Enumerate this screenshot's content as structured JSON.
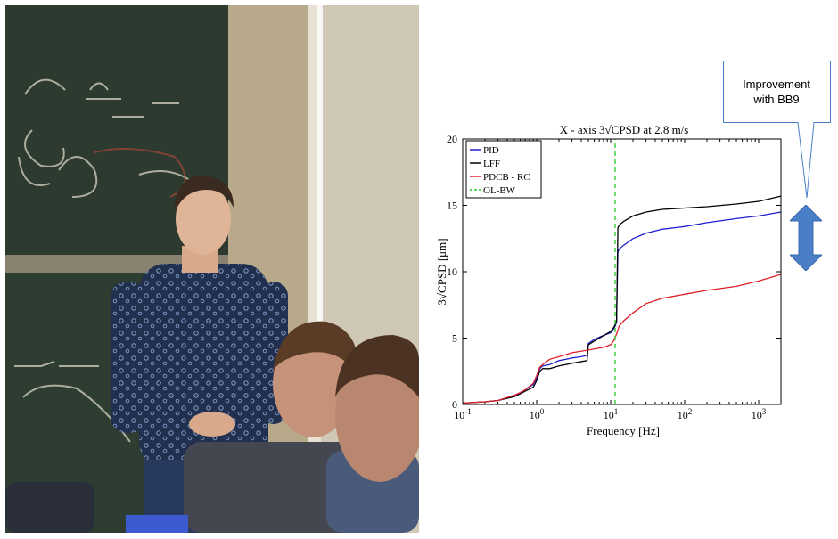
{
  "callout": {
    "line1": "Improvement",
    "line2": "with BB9"
  },
  "colors": {
    "pid": "#1f1fcf",
    "lff": "#000000",
    "pdcb": "#e0202a",
    "olbw": "#22cc22",
    "arrow": "#4a7fc7"
  },
  "photo": {
    "icon": "lecture-photo"
  },
  "chart_data": {
    "type": "line",
    "title": "X - axis 3√CPSD at 2.8 m/s",
    "xlabel": "Frequency [Hz]",
    "ylabel": "3√CPSD [μm]",
    "xscale": "log",
    "xlim": [
      0.1,
      2000
    ],
    "ylim": [
      0,
      20
    ],
    "yticks": [
      0,
      5,
      10,
      15,
      20
    ],
    "xticks": [
      {
        "value": 0.1,
        "base": "10",
        "exp": "-1"
      },
      {
        "value": 1,
        "base": "10",
        "exp": "0"
      },
      {
        "value": 10,
        "base": "10",
        "exp": "1"
      },
      {
        "value": 100,
        "base": "10",
        "exp": "2"
      },
      {
        "value": 1000,
        "base": "10",
        "exp": "3"
      }
    ],
    "grid": false,
    "legend_position": "top-left",
    "series": [
      {
        "name": "PID",
        "style": "solid",
        "colorKey": "pid",
        "x": [
          0.1,
          0.2,
          0.3,
          0.5,
          0.6,
          0.7,
          0.9,
          1.0,
          1.1,
          1.2,
          1.5,
          2,
          2.5,
          3,
          4,
          4.8,
          5,
          6,
          8,
          10,
          11,
          11.5,
          12,
          12.5,
          13,
          15,
          20,
          30,
          50,
          100,
          200,
          500,
          1000,
          2000
        ],
        "y": [
          0.1,
          0.2,
          0.3,
          0.6,
          0.9,
          1.1,
          1.5,
          2.0,
          2.7,
          2.9,
          3.0,
          3.3,
          3.4,
          3.5,
          3.6,
          3.7,
          4.6,
          4.9,
          5.2,
          5.4,
          5.7,
          5.9,
          6.2,
          11.5,
          11.7,
          12.0,
          12.5,
          12.9,
          13.2,
          13.4,
          13.7,
          14.0,
          14.2,
          14.5
        ]
      },
      {
        "name": "LFF",
        "style": "solid",
        "colorKey": "lff",
        "x": [
          0.1,
          0.2,
          0.3,
          0.5,
          0.6,
          0.7,
          0.9,
          1.0,
          1.1,
          1.2,
          1.5,
          2,
          3,
          4.8,
          5,
          7,
          10,
          11,
          11.5,
          12,
          12.5,
          13,
          15,
          20,
          30,
          50,
          100,
          200,
          500,
          1000,
          2000
        ],
        "y": [
          0.1,
          0.2,
          0.3,
          0.6,
          0.8,
          1.0,
          1.3,
          1.8,
          2.5,
          2.7,
          2.7,
          2.9,
          3.1,
          3.3,
          4.5,
          5.0,
          5.5,
          5.8,
          6.0,
          6.3,
          13.3,
          13.5,
          13.8,
          14.2,
          14.5,
          14.7,
          14.8,
          14.9,
          15.1,
          15.3,
          15.7
        ]
      },
      {
        "name": "PDCB - RC",
        "style": "solid",
        "colorKey": "pdcb",
        "x": [
          0.1,
          0.2,
          0.3,
          0.5,
          0.6,
          0.7,
          0.9,
          1.0,
          1.1,
          1.2,
          1.5,
          2,
          3,
          5,
          8,
          10,
          11,
          12,
          13,
          15,
          20,
          30,
          50,
          100,
          200,
          500,
          1000,
          2000
        ],
        "y": [
          0.1,
          0.2,
          0.3,
          0.7,
          0.9,
          1.1,
          1.6,
          2.2,
          2.8,
          3.0,
          3.4,
          3.6,
          3.9,
          4.1,
          4.3,
          4.5,
          4.8,
          5.3,
          5.9,
          6.3,
          6.9,
          7.6,
          8.0,
          8.3,
          8.6,
          8.9,
          9.3,
          9.8
        ]
      },
      {
        "name": "OL-BW",
        "style": "dashed",
        "colorKey": "olbw",
        "x": [
          11.5,
          11.5
        ],
        "y": [
          0,
          20
        ]
      }
    ]
  }
}
